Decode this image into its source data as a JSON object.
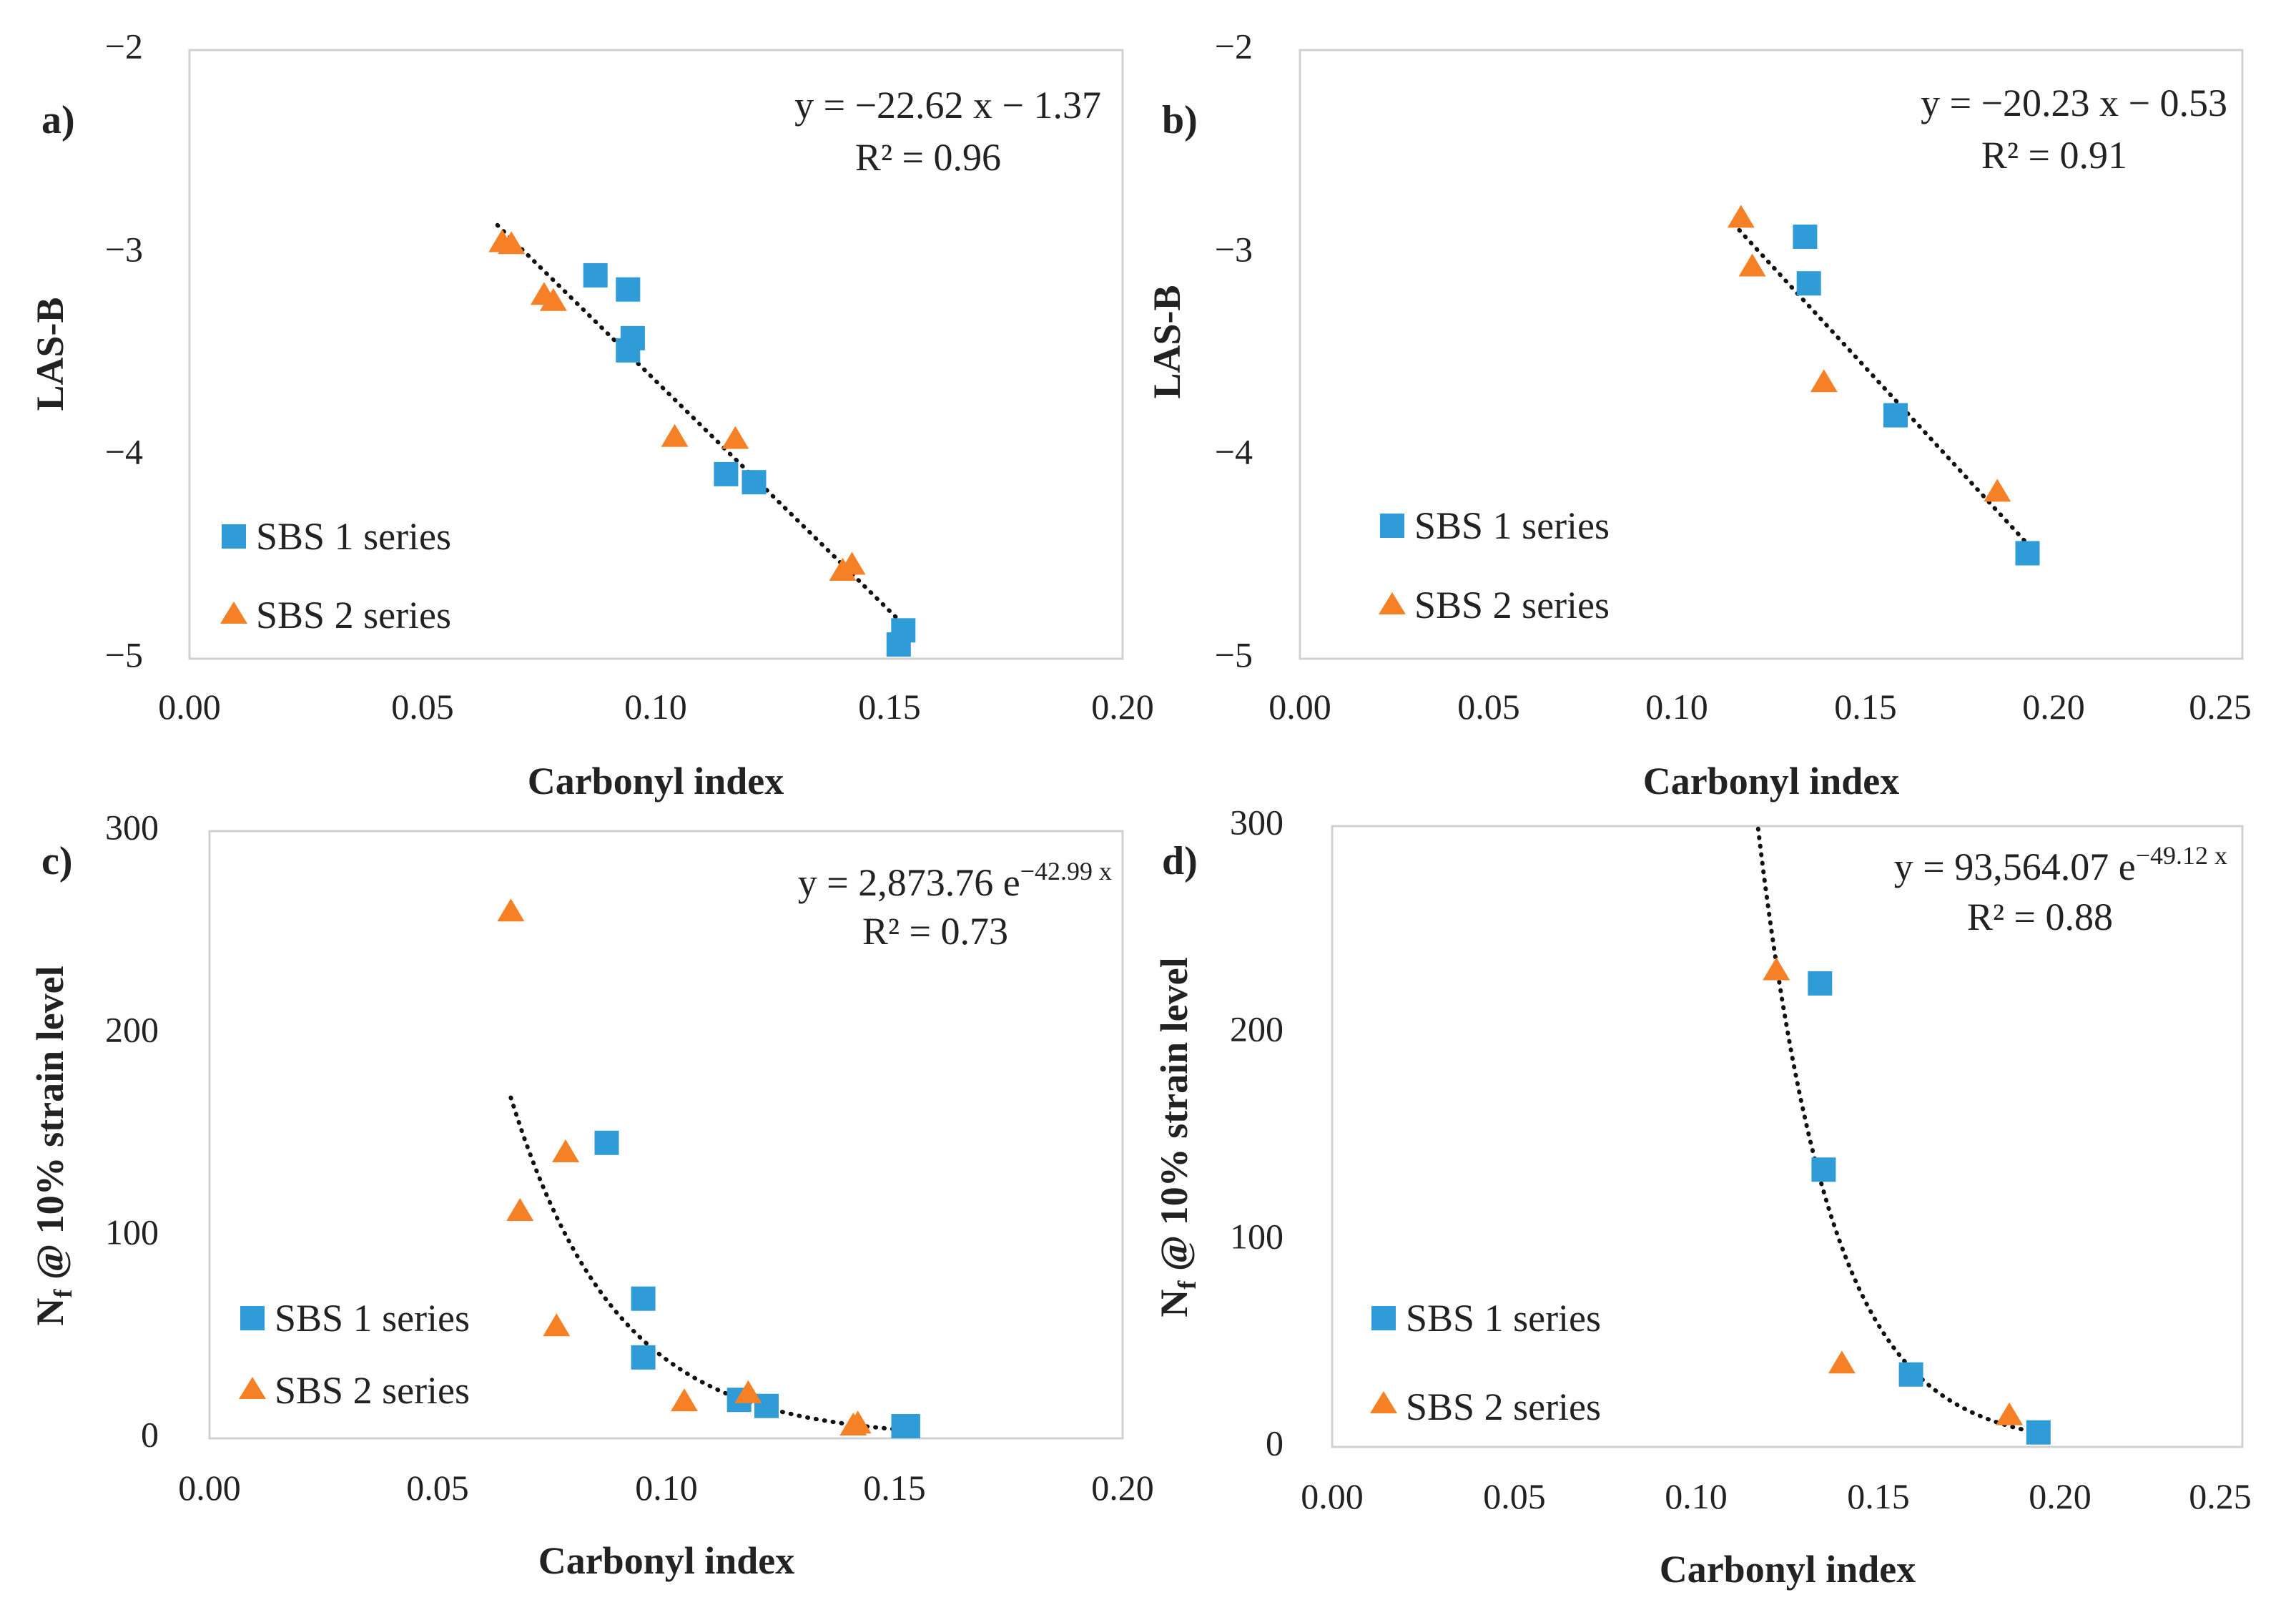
{
  "chart_data": [
    {
      "panel": "a)",
      "type": "scatter",
      "xlabel": "Carbonyl index",
      "ylabel": "LAS-B",
      "xlim": [
        0,
        0.2
      ],
      "ylim": [
        -5,
        -2
      ],
      "xticks": [
        "0.00",
        "0.05",
        "0.10",
        "0.15",
        "0.20"
      ],
      "yticks": [
        "−5",
        "−4",
        "−3",
        "−2"
      ],
      "trendline": {
        "kind": "linear",
        "slope": -22.62,
        "intercept": -1.37,
        "x_range": [
          0.066,
          0.153
        ],
        "equation": "y = −22.62 x − 1.37",
        "r2": "R² = 0.96"
      },
      "series": [
        {
          "name": "SBS 1 series",
          "marker": "square",
          "color": "#2f9bd7",
          "points": [
            [
              0.087,
              -3.11
            ],
            [
              0.094,
              -3.18
            ],
            [
              0.095,
              -3.42
            ],
            [
              0.094,
              -3.48
            ],
            [
              0.115,
              -4.09
            ],
            [
              0.121,
              -4.13
            ],
            [
              0.153,
              -4.86
            ],
            [
              0.152,
              -4.93
            ]
          ]
        },
        {
          "name": "SBS 2 series",
          "marker": "triangle",
          "color": "#f58026",
          "points": [
            [
              0.067,
              -2.95
            ],
            [
              0.069,
              -2.96
            ],
            [
              0.076,
              -3.21
            ],
            [
              0.078,
              -3.24
            ],
            [
              0.104,
              -3.91
            ],
            [
              0.117,
              -3.92
            ],
            [
              0.14,
              -4.57
            ],
            [
              0.142,
              -4.54
            ]
          ]
        }
      ]
    },
    {
      "panel": "b)",
      "type": "scatter",
      "xlabel": "Carbonyl index",
      "ylabel": "LAS-B",
      "xlim": [
        0,
        0.25
      ],
      "ylim": [
        -5,
        -2
      ],
      "xticks": [
        "0.00",
        "0.05",
        "0.10",
        "0.15",
        "0.20",
        "0.25"
      ],
      "yticks": [
        "−5",
        "−4",
        "−3",
        "−2"
      ],
      "trendline": {
        "kind": "linear",
        "slope": -20.23,
        "intercept": -0.53,
        "x_range": [
          0.115,
          0.193
        ],
        "equation": "y = −20.23 x − 0.53",
        "r2": "R² = 0.91"
      },
      "series": [
        {
          "name": "SBS 1 series",
          "marker": "square",
          "color": "#2f9bd7",
          "points": [
            [
              0.134,
              -2.92
            ],
            [
              0.135,
              -3.15
            ],
            [
              0.158,
              -3.8
            ],
            [
              0.193,
              -4.48
            ]
          ]
        },
        {
          "name": "SBS 2 series",
          "marker": "triangle",
          "color": "#f58026",
          "points": [
            [
              0.117,
              -2.83
            ],
            [
              0.12,
              -3.07
            ],
            [
              0.139,
              -3.64
            ],
            [
              0.185,
              -4.18
            ]
          ]
        }
      ]
    },
    {
      "panel": "c)",
      "type": "scatter",
      "xlabel": "Carbonyl index",
      "ylabel": "N",
      "ylabel_sub": "f",
      "ylabel_rest": " @ 10% strain level",
      "xlim": [
        0,
        0.2
      ],
      "ylim": [
        0,
        300
      ],
      "xticks": [
        "0.00",
        "0.05",
        "0.10",
        "0.15",
        "0.20"
      ],
      "yticks": [
        "0",
        "100",
        "200",
        "300"
      ],
      "trendline": {
        "kind": "exponential",
        "a": 2873.76,
        "b": -42.99,
        "x_range": [
          0.066,
          0.153
        ],
        "equation_main": "y = 2,873.76 e",
        "equation_exp": "−42.99 x",
        "r2": "R² = 0.73"
      },
      "series": [
        {
          "name": "SBS 1 series",
          "marker": "square",
          "color": "#2f9bd7",
          "points": [
            [
              0.087,
              146
            ],
            [
              0.095,
              69
            ],
            [
              0.095,
              40
            ],
            [
              0.116,
              19
            ],
            [
              0.122,
              16
            ],
            [
              0.153,
              6
            ],
            [
              0.152,
              6
            ]
          ]
        },
        {
          "name": "SBS 2 series",
          "marker": "triangle",
          "color": "#f58026",
          "points": [
            [
              0.066,
              260
            ],
            [
              0.068,
              112
            ],
            [
              0.078,
              141
            ],
            [
              0.076,
              55
            ],
            [
              0.104,
              18
            ],
            [
              0.118,
              22
            ],
            [
              0.141,
              6
            ],
            [
              0.142,
              7
            ]
          ]
        }
      ]
    },
    {
      "panel": "d)",
      "type": "scatter",
      "xlabel": "Carbonyl index",
      "ylabel": "N",
      "ylabel_sub": "f",
      "ylabel_rest": " @ 10% strain level",
      "xlim": [
        0,
        0.25
      ],
      "ylim": [
        0,
        300
      ],
      "xticks": [
        "0.00",
        "0.05",
        "0.10",
        "0.15",
        "0.20",
        "0.25"
      ],
      "yticks": [
        "0",
        "100",
        "200",
        "300"
      ],
      "trendline": {
        "kind": "exponential",
        "a": 93564.07,
        "b": -49.12,
        "x_range": [
          0.117,
          0.193
        ],
        "equation_main": "y = 93,564.07 e",
        "equation_exp": "−49.12 x",
        "r2": "R² = 0.88"
      },
      "series": [
        {
          "name": "SBS 1 series",
          "marker": "square",
          "color": "#2f9bd7",
          "points": [
            [
              0.134,
              224
            ],
            [
              0.135,
              134
            ],
            [
              0.159,
              35
            ],
            [
              0.194,
              7
            ]
          ]
        },
        {
          "name": "SBS 2 series",
          "marker": "triangle",
          "color": "#f58026",
          "points": [
            [
              0.122,
              230
            ],
            [
              0.14,
              40
            ],
            [
              0.186,
              15
            ]
          ]
        }
      ]
    }
  ]
}
